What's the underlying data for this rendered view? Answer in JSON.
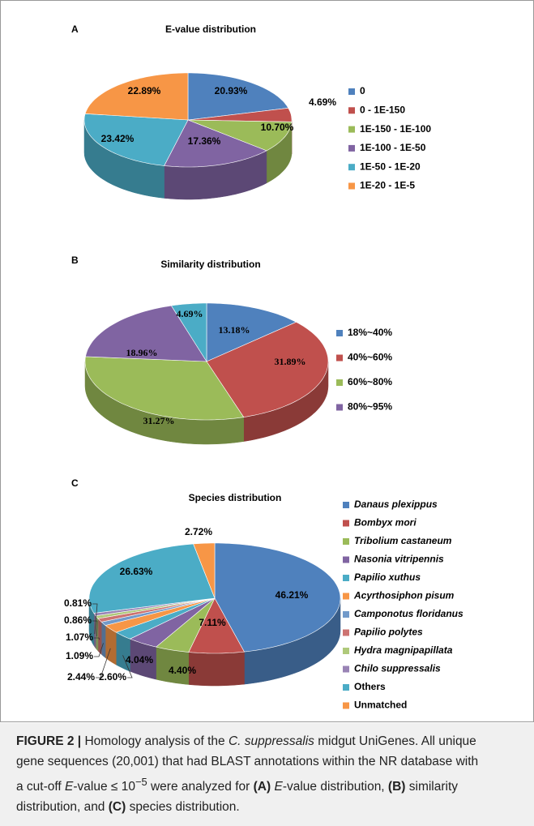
{
  "chart_data": [
    {
      "type": "pie",
      "panel": "A",
      "title": "E-value distribution",
      "categories": [
        "0",
        "0 - 1E-150",
        "1E-150 - 1E-100",
        "1E-100 - 1E-50",
        "1E-50 - 1E-20",
        "1E-20 - 1E-5"
      ],
      "values": [
        20.93,
        4.69,
        10.7,
        17.36,
        23.42,
        22.89
      ],
      "value_labels": [
        "20.93%",
        "4.69%",
        "10.70%",
        "17.36%",
        "23.42%",
        "22.89%"
      ],
      "colors": [
        "#4f81bd",
        "#c0504d",
        "#9bbb59",
        "#8064a2",
        "#4bacc6",
        "#f79646"
      ]
    },
    {
      "type": "pie",
      "panel": "B",
      "title": "Similarity distribution",
      "categories": [
        "18%~40%",
        "40%~60%",
        "60%~80%",
        "80%~95%",
        null
      ],
      "values": [
        13.18,
        31.89,
        31.27,
        18.96,
        4.69
      ],
      "value_labels": [
        "13.18%",
        "31.89%",
        "31.27%",
        "18.96%",
        "4.69%"
      ],
      "colors": [
        "#4f81bd",
        "#c0504d",
        "#9bbb59",
        "#8064a2",
        "#4bacc6"
      ]
    },
    {
      "type": "pie",
      "panel": "C",
      "title": "Species distribution",
      "categories": [
        "Danaus plexippus",
        "Bombyx mori",
        "Tribolium castaneum",
        "Nasonia vitripennis",
        "Papilio xuthus",
        "Acyrthosiphon pisum",
        "Camponotus floridanus",
        "Papilio polytes",
        "Hydra magnipapillata",
        "Chilo suppressalis",
        "Others",
        "Unmatched"
      ],
      "values": [
        46.21,
        7.11,
        4.4,
        4.04,
        2.6,
        2.44,
        1.09,
        1.07,
        0.86,
        0.81,
        26.63,
        2.72
      ],
      "value_labels": [
        "46.21%",
        "7.11%",
        "4.40%",
        "4.04%",
        "2.60%",
        "2.44%",
        "1.09%",
        "1.07%",
        "0.86%",
        "0.81%",
        "26.63%",
        "2.72%"
      ],
      "colors": [
        "#4f81bd",
        "#c0504d",
        "#9bbb59",
        "#8064a2",
        "#4bacc6",
        "#f79646",
        "#729aca",
        "#cd7371",
        "#afc97a",
        "#9983b5",
        "#4bacc6",
        "#f79646"
      ]
    }
  ],
  "caption": [
    "FIGURE 2 |",
    " Homology analysis of the ",
    "C. suppressalis",
    " midgut UniGenes. All unique gene sequences (20,001) that had BLAST annotations within the NR database with a cut-off ",
    "E",
    "-value ≤ 10",
    "−5",
    " were analyzed for ",
    "(A)",
    " ",
    "E",
    "-value distribution, ",
    "(B)",
    " similarity distribution, and ",
    "(C)",
    " species distribution."
  ]
}
